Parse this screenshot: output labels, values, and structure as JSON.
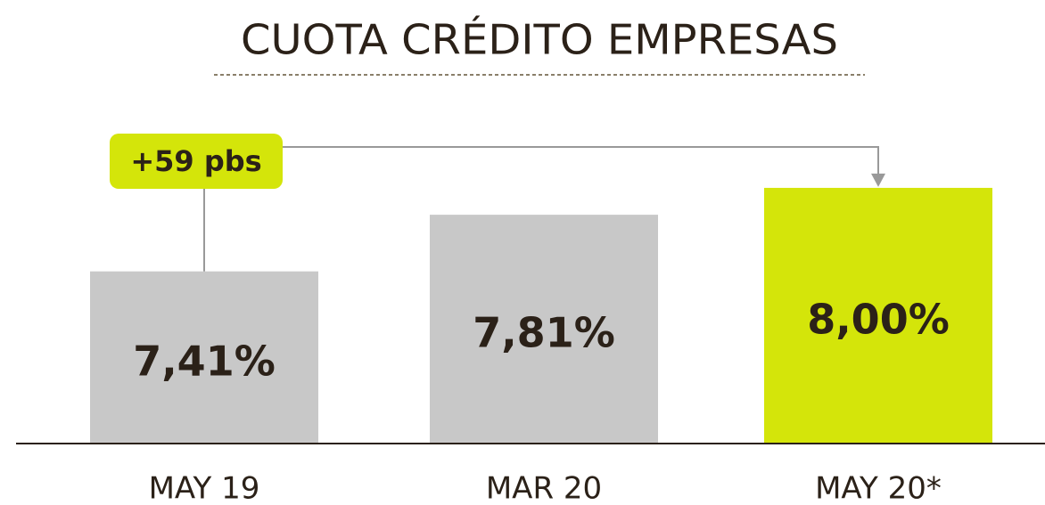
{
  "chart_data": {
    "type": "bar",
    "title": "CUOTA CRÉDITO EMPRESAS",
    "categories": [
      "MAY 19",
      "MAR 20",
      "MAY 20*"
    ],
    "values": [
      7.41,
      7.81,
      8.0
    ],
    "value_labels": [
      "7,41%",
      "7,81%",
      "8,00%"
    ],
    "colors": [
      "#c8c8c8",
      "#c8c8c8",
      "#d4e50a"
    ],
    "ylim": [
      6.2,
      9.0
    ],
    "annotation": "+59 pbs"
  }
}
